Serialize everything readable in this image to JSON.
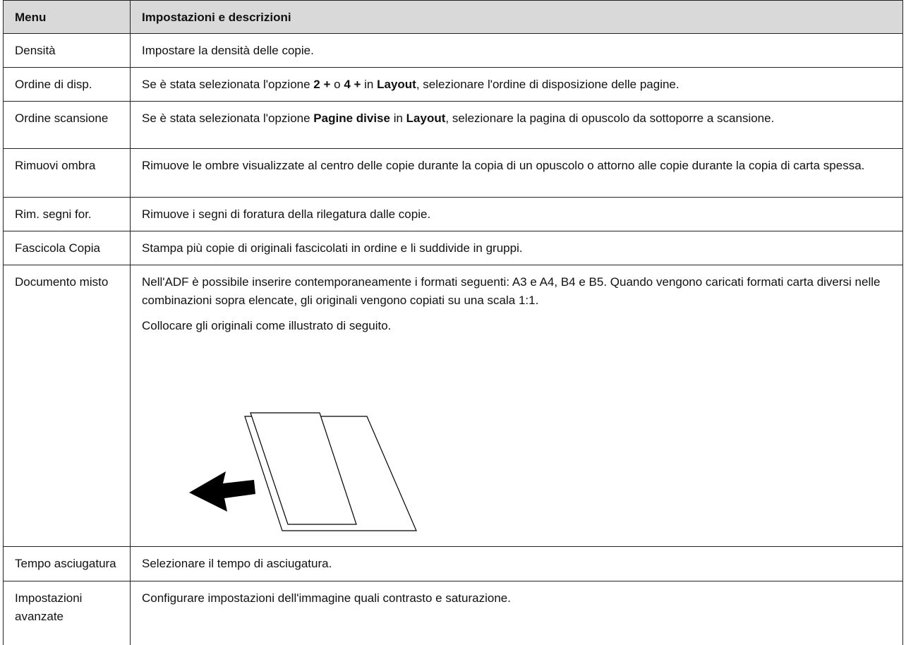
{
  "table": {
    "header": [
      "Menu",
      "Impostazioni e descrizioni"
    ],
    "rows": [
      {
        "menu": "Densità",
        "desc": [
          [
            {
              "text": "Impostare la densità delle copie."
            }
          ]
        ]
      },
      {
        "menu": "Ordine di disp.",
        "desc": [
          [
            {
              "text": "Se è stata selezionata l'opzione "
            },
            {
              "text": "2 +",
              "bold": true
            },
            {
              "text": " o "
            },
            {
              "text": "4 +",
              "bold": true
            },
            {
              "text": " in "
            },
            {
              "text": "Layout",
              "bold": true
            },
            {
              "text": ", selezionare l'ordine di disposizione delle pagine."
            }
          ]
        ]
      },
      {
        "menu": "Ordine scansione",
        "desc": [
          [
            {
              "text": "Se è stata selezionata l'opzione "
            },
            {
              "text": "Pagine divise",
              "bold": true
            },
            {
              "text": " in "
            },
            {
              "text": "Layout",
              "bold": true
            },
            {
              "text": ", selezionare la pagina di opuscolo da sottoporre a scansione."
            }
          ]
        ]
      },
      {
        "menu": "Rimuovi ombra",
        "desc": [
          [
            {
              "text": "Rimuove le ombre visualizzate al centro delle copie durante la copia di un opuscolo o attorno alle copie durante la copia di carta spessa."
            }
          ]
        ]
      },
      {
        "menu": "Rim. segni for.",
        "desc": [
          [
            {
              "text": "Rimuove i segni di foratura della rilegatura dalle copie."
            }
          ]
        ]
      },
      {
        "menu": "Fascicola Copia",
        "desc": [
          [
            {
              "text": "Stampa più copie di originali fascicolati in ordine e li suddivide in gruppi."
            }
          ]
        ]
      },
      {
        "menu": "Documento misto",
        "desc": [
          [
            {
              "text": "Nell'ADF è possibile inserire contemporaneamente i formati seguenti: A3 e A4, B4 e B5. Quando vengono caricati formati carta diversi nelle combinazioni sopra elencate, gli originali vengono copiati su una scala 1:1."
            }
          ],
          [
            {
              "text": "Collocare gli originali come illustrato di seguito."
            }
          ]
        ]
      },
      {
        "menu": "Tempo asciugatura",
        "desc": [
          [
            {
              "text": "Selezionare il tempo di asciugatura."
            }
          ]
        ]
      },
      {
        "menu": "Impostazioni avanzate",
        "desc": [
          [
            {
              "text": "Configurare impostazioni dell'immagine quali contrasto e saturazione."
            }
          ]
        ]
      }
    ]
  }
}
